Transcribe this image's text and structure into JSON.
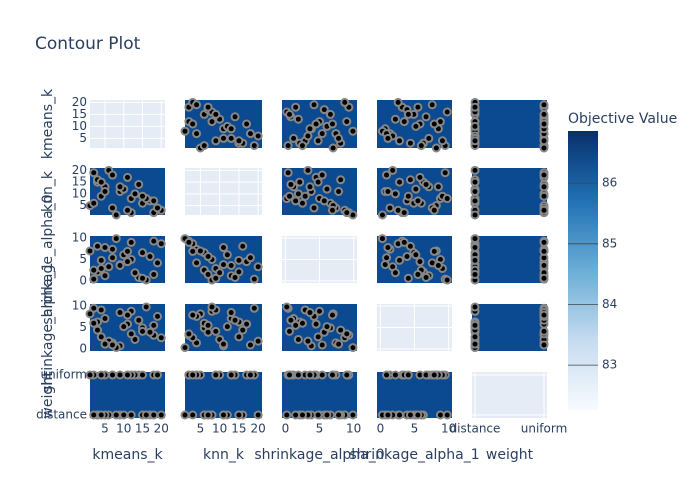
{
  "chart_data": {
    "type": "contour",
    "title": "Contour Plot",
    "colorbar_title": "Objective Value",
    "zlim": [
      82.26,
      86.86
    ],
    "zticks": [
      83,
      84,
      85,
      86
    ],
    "params": [
      {
        "name": "kmeans_k",
        "range": [
          1,
          21
        ],
        "ticks": [
          5,
          10,
          15,
          20
        ],
        "values": [
          3,
          7,
          12,
          18,
          2,
          9,
          15,
          5,
          20,
          11,
          4,
          8,
          14,
          17,
          6,
          1,
          10,
          13,
          19,
          3,
          16,
          7,
          2,
          12,
          9,
          5,
          18,
          11,
          4,
          15
        ]
      },
      {
        "name": "knn_k",
        "range": [
          1,
          21
        ],
        "ticks": [
          5,
          10,
          15,
          20
        ],
        "values": [
          15,
          4,
          8,
          2,
          19,
          11,
          6,
          13,
          3,
          17,
          9,
          1,
          14,
          7,
          20,
          5,
          12,
          10,
          4,
          16,
          8,
          18,
          6,
          2,
          13,
          11,
          7,
          3,
          15,
          9
        ]
      },
      {
        "name": "shrinkage_alpha_0",
        "range": [
          -0.5,
          10.5
        ],
        "ticks": [
          0,
          5,
          10
        ],
        "values": [
          2.1,
          7.4,
          5.0,
          9.3,
          0.4,
          3.8,
          6.6,
          1.2,
          8.7,
          4.5,
          2.9,
          9.9,
          0.8,
          5.7,
          3.3,
          7.0,
          6.1,
          1.9,
          4.2,
          8.1,
          0.2,
          5.4,
          2.5,
          9.0,
          3.6,
          7.8,
          1.5,
          6.9,
          4.8,
          0.6
        ]
      },
      {
        "name": "shrinkage_alpha_1",
        "range": [
          -0.5,
          10.5
        ],
        "ticks": [
          0,
          5,
          10
        ],
        "values": [
          6.3,
          1.4,
          8.8,
          3.2,
          9.5,
          0.7,
          4.9,
          7.1,
          2.6,
          5.8,
          9.1,
          0.3,
          6.7,
          3.9,
          1.8,
          8.2,
          5.2,
          2.2,
          7.6,
          4.4,
          9.8,
          0.9,
          6.0,
          3.5,
          8.5,
          1.1,
          5.5,
          7.9,
          2.8,
          4.1
        ]
      },
      {
        "name": "weight",
        "categories": [
          "distance",
          "uniform"
        ],
        "values": [
          "distance",
          "uniform",
          "distance",
          "uniform",
          "uniform",
          "distance",
          "distance",
          "uniform",
          "distance",
          "uniform",
          "uniform",
          "distance",
          "uniform",
          "distance",
          "distance",
          "uniform",
          "distance",
          "uniform",
          "uniform",
          "distance",
          "distance",
          "uniform",
          "distance",
          "uniform",
          "uniform",
          "distance",
          "distance",
          "uniform",
          "distance",
          "uniform"
        ]
      }
    ],
    "objective_values": [
      84.1,
      85.3,
      86.2,
      83.7,
      82.9,
      85.8,
      86.5,
      84.6,
      83.2,
      85.1,
      84.9,
      86.7,
      83.5,
      85.6,
      82.4,
      84.3,
      86.0,
      85.4,
      83.9,
      84.7,
      82.6,
      85.9,
      84.2,
      86.3,
      83.1,
      85.0,
      84.4,
      86.1,
      83.8,
      85.2
    ]
  }
}
